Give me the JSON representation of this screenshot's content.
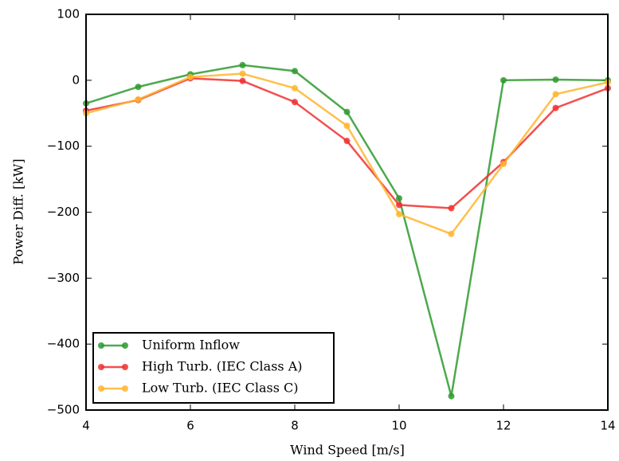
{
  "chart_data": {
    "type": "line",
    "xlabel": "Wind Speed [m/s]",
    "ylabel": "Power Diff. [kW]",
    "x": [
      4,
      5,
      6,
      7,
      8,
      9,
      10,
      11,
      12,
      13,
      14
    ],
    "series": [
      {
        "name": "Uniform Inflow",
        "color": "#2e9a2e",
        "values": [
          -35,
          -10,
          9,
          23,
          14,
          -48,
          -179,
          -479,
          0,
          1,
          0
        ]
      },
      {
        "name": "High Turb. (IEC Class A)",
        "color": "#f03030",
        "values": [
          -46,
          -30,
          3,
          -1,
          -33,
          -92,
          -189,
          -194,
          -124,
          -42,
          -12
        ]
      },
      {
        "name": "Low Turb. (IEC Class C)",
        "color": "#ffb52e",
        "values": [
          -50,
          -29,
          5,
          10,
          -12,
          -69,
          -203,
          -233,
          -127,
          -21,
          -3
        ]
      }
    ],
    "xlim": [
      4,
      14
    ],
    "xticks": [
      4,
      6,
      8,
      10,
      12,
      14
    ],
    "ylim": [
      -500,
      100
    ],
    "yticks": [
      {
        "value": -500,
        "label": "−500"
      },
      {
        "value": -400,
        "label": "−400"
      },
      {
        "value": -300,
        "label": "−300"
      },
      {
        "value": -200,
        "label": "−200"
      },
      {
        "value": -100,
        "label": "−100"
      },
      0,
      100
    ],
    "grid": false,
    "legend": "lower left"
  }
}
